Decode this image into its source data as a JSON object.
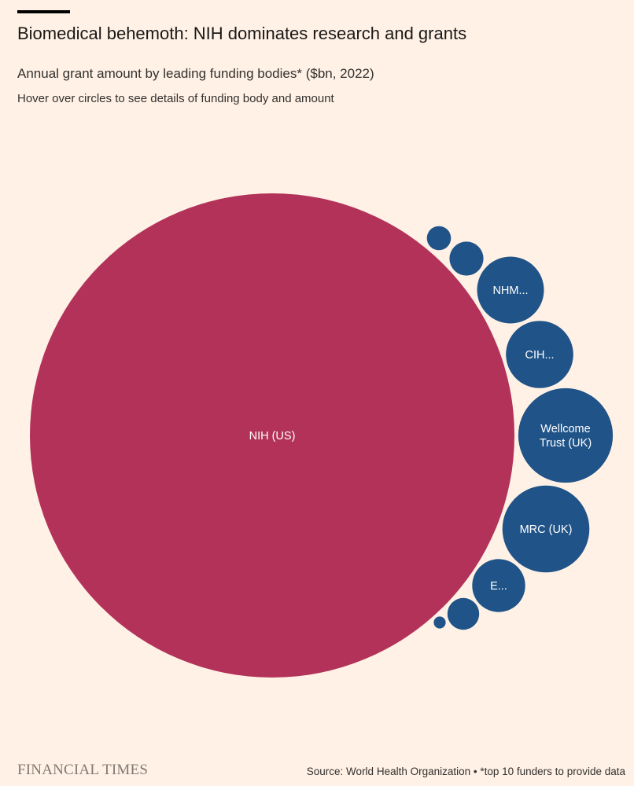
{
  "header": {
    "title": "Biomedical behemoth: NIH dominates research and grants",
    "subtitle": "Annual grant amount by leading funding bodies* ($bn, 2022)",
    "instruction": "Hover over circles to see details of funding body and amount"
  },
  "chart_data": {
    "type": "bubble",
    "title": "Biomedical behemoth: NIH dominates research and grants",
    "subtitle": "Annual grant amount by leading funding bodies* ($bn, 2022)",
    "unit": "$bn",
    "year": 2022,
    "colors": {
      "highlight": "#b3325a",
      "other": "#205388",
      "label": "#ffffff",
      "background": "#fff1e5"
    },
    "bubbles": [
      {
        "label": "NIH (US)",
        "value": 32.6,
        "highlight": true
      },
      {
        "label": "",
        "value": 0.08
      },
      {
        "label": "",
        "value": 0.16
      },
      {
        "label": "NHM...",
        "value": 0.62
      },
      {
        "label": "CIH...",
        "value": 0.63
      },
      {
        "label": "Wellcome Trust (UK)",
        "value": 1.24
      },
      {
        "label": "MRC (UK)",
        "value": 1.05
      },
      {
        "label": "E...",
        "value": 0.39
      },
      {
        "label": "",
        "value": 0.14
      },
      {
        "label": "",
        "value": 0.02
      }
    ]
  },
  "footer": {
    "brand": "FINANCIAL TIMES",
    "source": "Source: World Health Organization • *top 10 funders to provide data"
  }
}
